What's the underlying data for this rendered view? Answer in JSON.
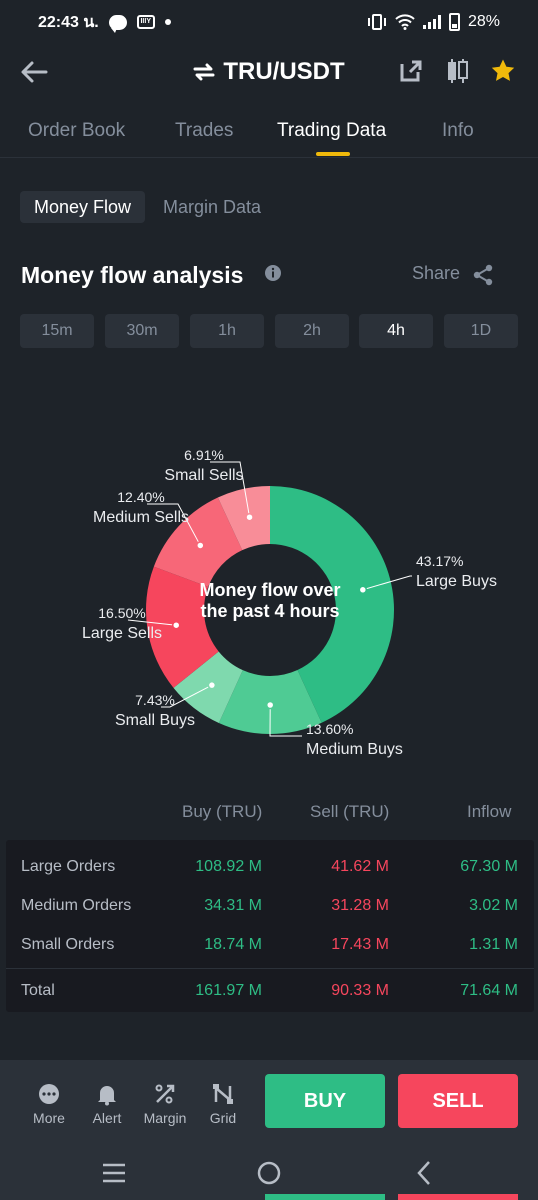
{
  "status_bar": {
    "time": "22:43 น.",
    "battery": "28%",
    "media_badge": "IIIY"
  },
  "header": {
    "title": "TRU/USDT"
  },
  "tabs": [
    {
      "label": "Order Book"
    },
    {
      "label": "Trades"
    },
    {
      "label": "Trading Data"
    },
    {
      "label": "Info"
    }
  ],
  "subtabs": [
    {
      "label": "Money Flow"
    },
    {
      "label": "Margin Data"
    }
  ],
  "section": {
    "title": "Money flow analysis",
    "share_label": "Share"
  },
  "time_ranges": [
    {
      "label": "15m"
    },
    {
      "label": "30m"
    },
    {
      "label": "1h"
    },
    {
      "label": "2h"
    },
    {
      "label": "4h"
    },
    {
      "label": "1D"
    }
  ],
  "chart_data": {
    "type": "pie",
    "center_text": [
      "Money flow over",
      "the past 4 hours"
    ],
    "slices": [
      {
        "name": "Large Buys",
        "value": 43.17,
        "label": "43.17%",
        "color": "#2ebd85"
      },
      {
        "name": "Medium Buys",
        "value": 13.6,
        "label": "13.60%",
        "color": "#4fcb94"
      },
      {
        "name": "Small Buys",
        "value": 7.43,
        "label": "7.43%",
        "color": "#7fd9ae"
      },
      {
        "name": "Large Sells",
        "value": 16.5,
        "label": "16.50%",
        "color": "#f6465d"
      },
      {
        "name": "Medium Sells",
        "value": 12.4,
        "label": "12.40%",
        "color": "#f76778"
      },
      {
        "name": "Small Sells",
        "value": 6.91,
        "label": "6.91%",
        "color": "#f88d98"
      }
    ]
  },
  "table": {
    "headers": {
      "buy": "Buy (TRU)",
      "sell": "Sell (TRU)",
      "inflow": "Inflow"
    },
    "rows": [
      {
        "label": "Large Orders",
        "buy": "108.92 M",
        "sell": "41.62 M",
        "inflow": "67.30 M"
      },
      {
        "label": "Medium Orders",
        "buy": "34.31 M",
        "sell": "31.28 M",
        "inflow": "3.02 M"
      },
      {
        "label": "Small Orders",
        "buy": "18.74 M",
        "sell": "17.43 M",
        "inflow": "1.31 M"
      }
    ],
    "total": {
      "label": "Total",
      "buy": "161.97 M",
      "sell": "90.33 M",
      "inflow": "71.64 M"
    }
  },
  "bottom_bar": {
    "items": [
      {
        "label": "More"
      },
      {
        "label": "Alert"
      },
      {
        "label": "Margin"
      },
      {
        "label": "Grid"
      }
    ],
    "buy_label": "BUY",
    "sell_label": "SELL"
  },
  "colors": {
    "background": "#1e2329",
    "accent": "#f0b90b",
    "up": "#2ebd85",
    "down": "#f6465d"
  }
}
